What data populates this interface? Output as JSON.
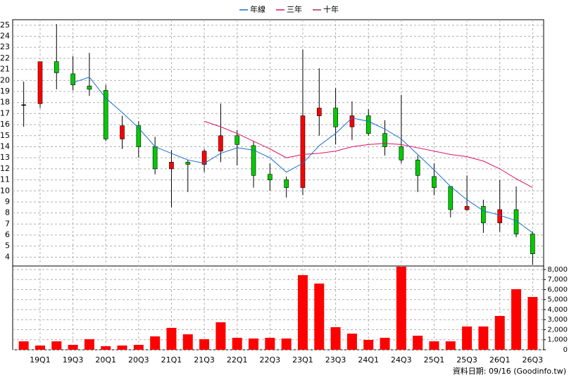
{
  "chart_data": [
    {
      "type": "candlestick",
      "up_color": "#ff0000",
      "down_color": "#00cc00",
      "open": [
        17.8,
        17.9,
        21.7,
        20.6,
        19.5,
        19.1,
        14.7,
        15.9,
        14.0,
        12.0,
        12.6,
        12.4,
        13.6,
        15.0,
        14.1,
        11.5,
        11.0,
        10.3,
        16.8,
        17.5,
        15.8,
        16.8,
        15.2,
        14.0,
        12.8,
        11.3,
        10.4,
        8.3,
        8.6,
        7.1,
        8.3,
        6.1
      ],
      "high": [
        19.9,
        21.7,
        25.1,
        22.2,
        22.5,
        19.6,
        16.8,
        16.3,
        14.9,
        13.7,
        12.8,
        13.8,
        17.9,
        15.5,
        14.5,
        12.5,
        11.3,
        22.8,
        21.1,
        19.3,
        18.1,
        17.4,
        16.4,
        18.7,
        13.2,
        12.5,
        10.4,
        11.4,
        9.2,
        11.0,
        10.4,
        6.3
      ],
      "low": [
        15.8,
        17.5,
        19.2,
        19.1,
        18.6,
        14.5,
        13.8,
        13.0,
        11.5,
        8.5,
        9.9,
        11.7,
        12.6,
        12.3,
        10.3,
        10.0,
        9.4,
        9.6,
        15.0,
        14.2,
        14.6,
        15.0,
        13.2,
        12.5,
        9.9,
        9.6,
        7.6,
        8.2,
        6.2,
        6.3,
        5.8,
        3.3
      ],
      "close": [
        17.8,
        21.7,
        20.7,
        19.6,
        19.2,
        14.7,
        15.9,
        14.0,
        12.0,
        12.6,
        12.4,
        13.6,
        15.0,
        14.2,
        11.4,
        11.0,
        10.3,
        16.8,
        17.5,
        15.8,
        16.8,
        15.2,
        14.0,
        12.8,
        11.4,
        10.3,
        8.3,
        8.6,
        7.1,
        8.3,
        6.1,
        4.3
      ],
      "series": [
        {
          "name": "年線",
          "color": "#1a6fd0",
          "values": [
            null,
            null,
            null,
            19.8,
            20.3,
            18.4,
            17.1,
            15.7,
            14.0,
            13.4,
            12.8,
            12.5,
            13.4,
            13.9,
            13.7,
            13.0,
            11.7,
            12.5,
            14.1,
            15.2,
            16.6,
            16.3,
            15.6,
            14.7,
            13.3,
            11.9,
            10.4,
            9.2,
            8.2,
            7.8,
            7.3,
            6.2
          ]
        },
        {
          "name": "三年",
          "color": "#dd1166",
          "values": [
            null,
            null,
            null,
            null,
            null,
            null,
            null,
            null,
            null,
            null,
            null,
            16.3,
            15.8,
            15.2,
            14.5,
            13.8,
            13.0,
            13.3,
            13.4,
            13.6,
            14.0,
            14.2,
            14.3,
            14.2,
            13.9,
            13.6,
            13.3,
            13.1,
            12.7,
            12.0,
            11.1,
            10.3
          ]
        },
        {
          "name": "十年",
          "color": "#993366",
          "values": [
            null,
            null,
            null,
            null,
            null,
            null,
            null,
            null,
            null,
            null,
            null,
            null,
            null,
            null,
            null,
            null,
            null,
            null,
            null,
            null,
            null,
            null,
            null,
            null,
            null,
            null,
            null,
            null,
            null,
            null,
            null,
            null
          ]
        }
      ],
      "ylim": [
        3.2,
        25.5
      ],
      "yticks": [
        4,
        5,
        6,
        7,
        8,
        9,
        10,
        11,
        12,
        13,
        14,
        15,
        16,
        17,
        18,
        19,
        20,
        21,
        22,
        23,
        24,
        25
      ],
      "grid": true
    },
    {
      "type": "bar",
      "color": "#ff0000",
      "categories": [
        null,
        "19Q1",
        null,
        "19Q3",
        null,
        "20Q1",
        null,
        "20Q3",
        null,
        "21Q1",
        null,
        "21Q3",
        null,
        "22Q1",
        null,
        "22Q3",
        null,
        "23Q1",
        null,
        "23Q3",
        null,
        "24Q1",
        null,
        "24Q3",
        null,
        "25Q1",
        null,
        "25Q3",
        null,
        "26Q1",
        null,
        "26Q3"
      ],
      "values": [
        840,
        420,
        840,
        490,
        1050,
        350,
        420,
        490,
        1330,
        2180,
        1540,
        1050,
        2740,
        1190,
        1120,
        1190,
        1120,
        7440,
        6600,
        2250,
        1610,
        980,
        1190,
        8280,
        1400,
        840,
        840,
        2320,
        2320,
        3370,
        6040,
        5260
      ],
      "ylim": [
        0,
        8350
      ],
      "yticks": [
        0,
        {
          "value": 1000,
          "label": "1,000"
        },
        {
          "value": 2000,
          "label": "2,000"
        },
        {
          "value": 3000,
          "label": "3,000"
        },
        {
          "value": 4000,
          "label": "4,000"
        },
        {
          "value": 5000,
          "label": "5,000"
        },
        {
          "value": 6000,
          "label": "6,000"
        },
        {
          "value": 7000,
          "label": "7,000"
        },
        {
          "value": 8000,
          "label": "8,000"
        }
      ],
      "grid": true,
      "source": "資料日期: 09/16 (Goodinfo.tw)"
    }
  ]
}
